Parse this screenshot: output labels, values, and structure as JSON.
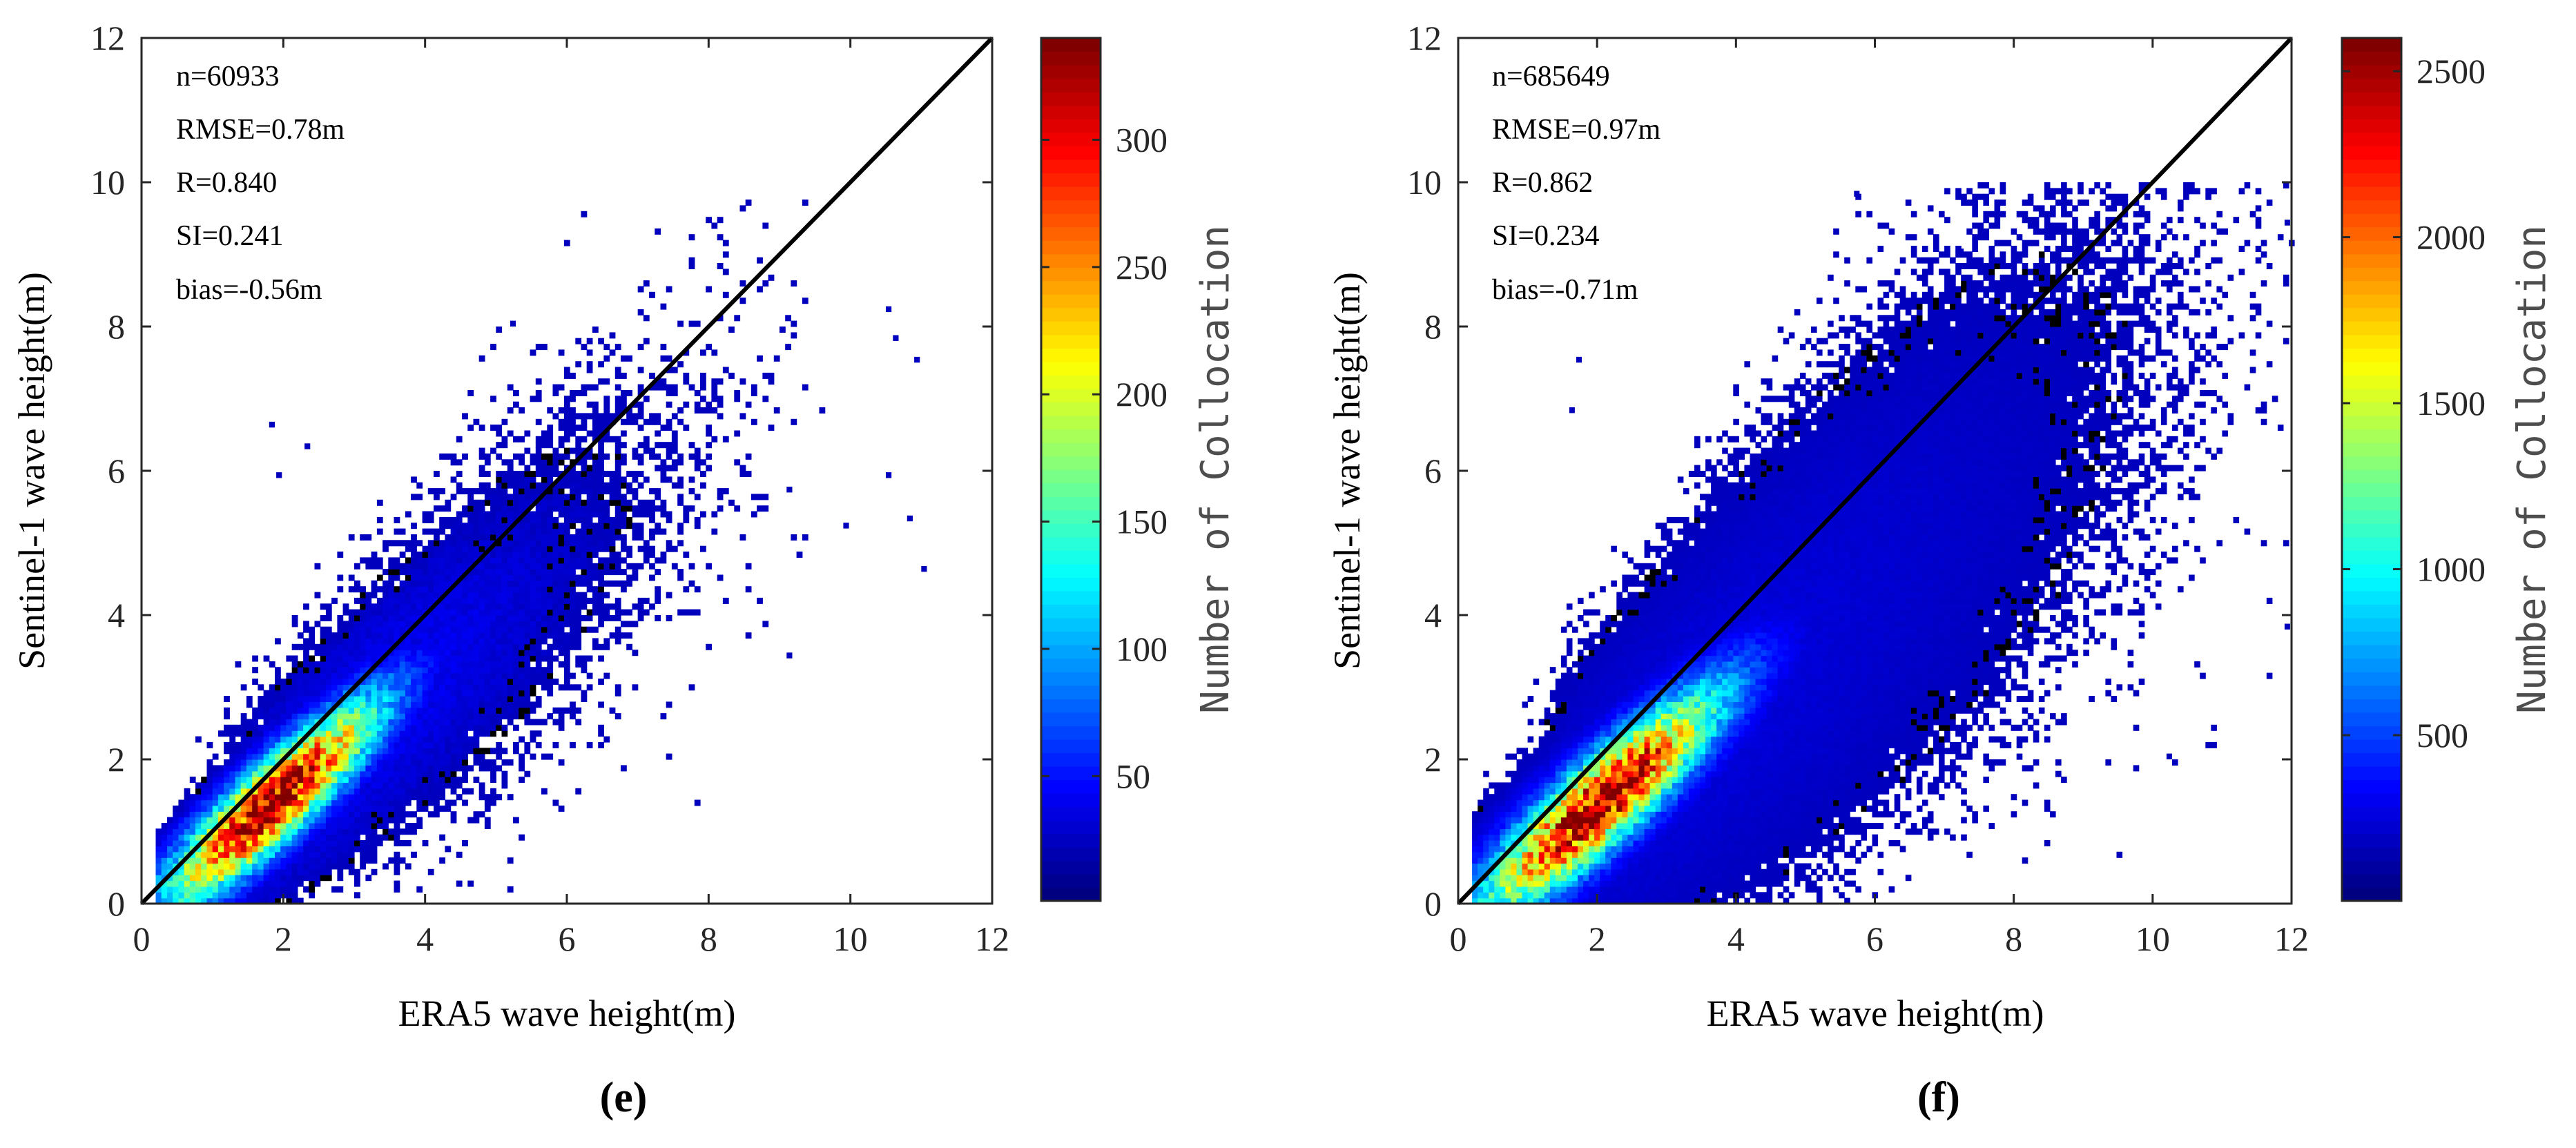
{
  "chart_data": [
    {
      "type": "heatmap",
      "panel_label": "(e)",
      "xlabel": "ERA5 wave height(m)",
      "ylabel": "Sentinel-1 wave height(m)",
      "xlim": [
        0,
        12
      ],
      "ylim": [
        0,
        12
      ],
      "xticks": [
        0,
        2,
        4,
        6,
        8,
        10,
        12
      ],
      "yticks": [
        0,
        2,
        4,
        6,
        8,
        10,
        12
      ],
      "stats": [
        "n=60933",
        "RMSE=0.78m",
        "R=0.840",
        "SI=0.241",
        "bias=-0.56m"
      ],
      "colorbar": {
        "label": "Number of Collocation",
        "min": 1,
        "max": 340,
        "ticks": [
          50,
          100,
          150,
          200,
          250,
          300
        ]
      },
      "density_model": {
        "peak_x": 1.85,
        "peak_y": 1.4,
        "peak_count": 340,
        "spread_along": 0.8,
        "spread_across": 0.34,
        "slope": 0.83,
        "tail_along": 2.4,
        "tail_across": 0.75,
        "tail_weight": 0.018,
        "x_max": 9.6
      },
      "outliers": [
        [
          10.5,
          8.2
        ],
        [
          10.6,
          7.8
        ],
        [
          10.9,
          7.5
        ],
        [
          10.5,
          5.9
        ],
        [
          10.8,
          5.3
        ],
        [
          11.0,
          4.6
        ],
        [
          9.9,
          5.2
        ],
        [
          9.1,
          5.7
        ],
        [
          5.2,
          8.0
        ],
        [
          1.8,
          6.6
        ],
        [
          2.3,
          6.3
        ],
        [
          1.9,
          5.9
        ],
        [
          9.1,
          3.4
        ]
      ],
      "reference_line": "y = x"
    },
    {
      "type": "heatmap",
      "panel_label": "(f)",
      "xlabel": "ERA5 wave height(m)",
      "ylabel": "Sentinel-1 wave height(m)",
      "xlim": [
        0,
        12
      ],
      "ylim": [
        0,
        12
      ],
      "xticks": [
        0,
        2,
        4,
        6,
        8,
        10,
        12
      ],
      "yticks": [
        0,
        2,
        4,
        6,
        8,
        10,
        12
      ],
      "stats": [
        "n=685649",
        "RMSE=0.97m",
        "R=0.862",
        "SI=0.234",
        "bias=-0.71m"
      ],
      "colorbar": {
        "label": "Number of Collocation",
        "min": 1,
        "max": 2600,
        "ticks": [
          500,
          1000,
          1500,
          2000,
          2500
        ]
      },
      "density_model": {
        "peak_x": 2.05,
        "peak_y": 1.4,
        "peak_count": 2600,
        "spread_along": 0.9,
        "spread_across": 0.37,
        "slope": 0.8,
        "tail_along": 3.0,
        "tail_across": 0.95,
        "tail_weight": 0.006,
        "x_max": 12
      },
      "outliers": [
        [
          5.7,
          9.8
        ],
        [
          7.2,
          9.0
        ],
        [
          11.9,
          9.4
        ],
        [
          1.7,
          7.5
        ],
        [
          1.6,
          6.8
        ],
        [
          10.2,
          2.0
        ],
        [
          11.9,
          3.8
        ]
      ],
      "reference_line": "y = x"
    }
  ]
}
